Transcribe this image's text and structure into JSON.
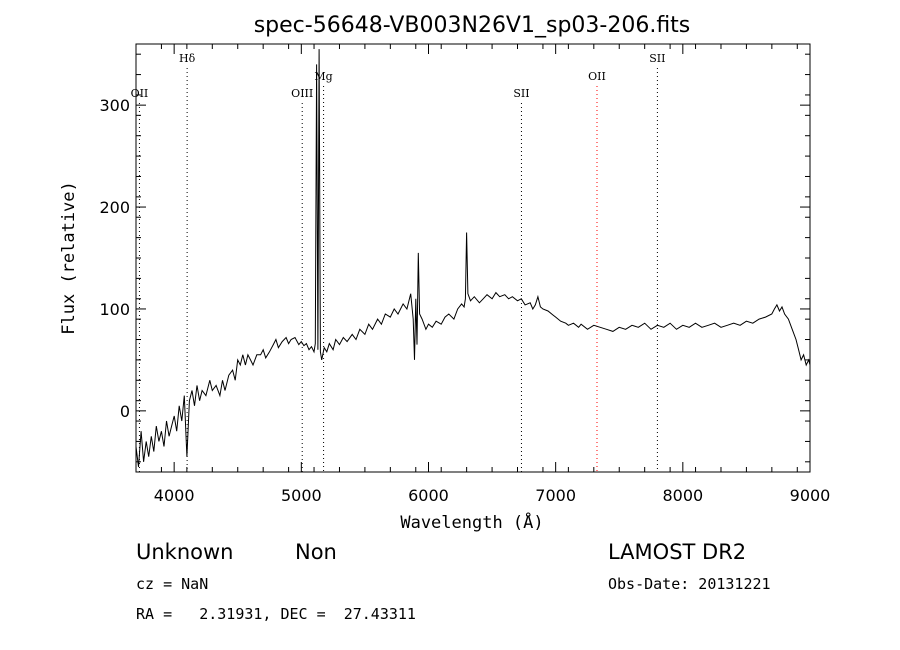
{
  "chart_data": {
    "type": "line",
    "title": "spec-56648-VB003N26V1_sp03-206.fits",
    "xlabel": "Wavelength (Å)",
    "ylabel": "Flux (relative)",
    "xlim": [
      3700,
      9000
    ],
    "ylim": [
      -60,
      360
    ],
    "x_ticks": [
      4000,
      5000,
      6000,
      7000,
      8000,
      9000
    ],
    "y_ticks": [
      0,
      100,
      200,
      300
    ],
    "grid": false,
    "line_color": "#000000",
    "series": [
      {
        "points": [
          [
            3700,
            -35
          ],
          [
            3720,
            -55
          ],
          [
            3740,
            -20
          ],
          [
            3760,
            -50
          ],
          [
            3780,
            -30
          ],
          [
            3800,
            -45
          ],
          [
            3820,
            -25
          ],
          [
            3840,
            -40
          ],
          [
            3860,
            -15
          ],
          [
            3880,
            -30
          ],
          [
            3900,
            -20
          ],
          [
            3920,
            -35
          ],
          [
            3940,
            -10
          ],
          [
            3960,
            -25
          ],
          [
            3980,
            -15
          ],
          [
            4000,
            -5
          ],
          [
            4020,
            -20
          ],
          [
            4040,
            5
          ],
          [
            4060,
            -10
          ],
          [
            4080,
            15
          ],
          [
            4100,
            -45
          ],
          [
            4120,
            10
          ],
          [
            4140,
            20
          ],
          [
            4160,
            5
          ],
          [
            4180,
            25
          ],
          [
            4200,
            10
          ],
          [
            4220,
            20
          ],
          [
            4250,
            15
          ],
          [
            4280,
            30
          ],
          [
            4300,
            20
          ],
          [
            4330,
            25
          ],
          [
            4360,
            15
          ],
          [
            4380,
            30
          ],
          [
            4400,
            20
          ],
          [
            4430,
            35
          ],
          [
            4460,
            40
          ],
          [
            4480,
            30
          ],
          [
            4500,
            50
          ],
          [
            4520,
            45
          ],
          [
            4540,
            55
          ],
          [
            4560,
            45
          ],
          [
            4580,
            55
          ],
          [
            4600,
            50
          ],
          [
            4620,
            45
          ],
          [
            4650,
            55
          ],
          [
            4680,
            55
          ],
          [
            4700,
            60
          ],
          [
            4720,
            52
          ],
          [
            4750,
            58
          ],
          [
            4780,
            65
          ],
          [
            4800,
            70
          ],
          [
            4820,
            62
          ],
          [
            4850,
            68
          ],
          [
            4880,
            72
          ],
          [
            4900,
            66
          ],
          [
            4920,
            70
          ],
          [
            4950,
            72
          ],
          [
            4980,
            65
          ],
          [
            5000,
            68
          ],
          [
            5020,
            64
          ],
          [
            5040,
            66
          ],
          [
            5060,
            60
          ],
          [
            5080,
            63
          ],
          [
            5100,
            58
          ],
          [
            5110,
            66
          ],
          [
            5120,
            340
          ],
          [
            5130,
            60
          ],
          [
            5140,
            355
          ],
          [
            5150,
            58
          ],
          [
            5160,
            50
          ],
          [
            5180,
            62
          ],
          [
            5200,
            58
          ],
          [
            5220,
            66
          ],
          [
            5250,
            60
          ],
          [
            5270,
            70
          ],
          [
            5300,
            65
          ],
          [
            5330,
            72
          ],
          [
            5360,
            68
          ],
          [
            5400,
            75
          ],
          [
            5430,
            70
          ],
          [
            5460,
            80
          ],
          [
            5500,
            75
          ],
          [
            5530,
            85
          ],
          [
            5560,
            80
          ],
          [
            5600,
            90
          ],
          [
            5630,
            85
          ],
          [
            5660,
            95
          ],
          [
            5700,
            92
          ],
          [
            5730,
            100
          ],
          [
            5760,
            95
          ],
          [
            5800,
            105
          ],
          [
            5830,
            100
          ],
          [
            5860,
            115
          ],
          [
            5880,
            90
          ],
          [
            5890,
            50
          ],
          [
            5900,
            110
          ],
          [
            5910,
            65
          ],
          [
            5920,
            155
          ],
          [
            5930,
            95
          ],
          [
            5950,
            90
          ],
          [
            5980,
            80
          ],
          [
            6000,
            85
          ],
          [
            6030,
            82
          ],
          [
            6060,
            88
          ],
          [
            6100,
            85
          ],
          [
            6130,
            92
          ],
          [
            6160,
            95
          ],
          [
            6200,
            90
          ],
          [
            6230,
            100
          ],
          [
            6260,
            105
          ],
          [
            6280,
            102
          ],
          [
            6290,
            110
          ],
          [
            6300,
            175
          ],
          [
            6310,
            115
          ],
          [
            6330,
            108
          ],
          [
            6360,
            112
          ],
          [
            6400,
            106
          ],
          [
            6430,
            110
          ],
          [
            6460,
            114
          ],
          [
            6500,
            110
          ],
          [
            6530,
            116
          ],
          [
            6560,
            112
          ],
          [
            6600,
            114
          ],
          [
            6630,
            110
          ],
          [
            6660,
            112
          ],
          [
            6700,
            108
          ],
          [
            6730,
            110
          ],
          [
            6760,
            104
          ],
          [
            6800,
            106
          ],
          [
            6820,
            100
          ],
          [
            6840,
            104
          ],
          [
            6860,
            112
          ],
          [
            6880,
            102
          ],
          [
            6900,
            100
          ],
          [
            6940,
            98
          ],
          [
            6980,
            94
          ],
          [
            7000,
            92
          ],
          [
            7040,
            88
          ],
          [
            7080,
            86
          ],
          [
            7100,
            84
          ],
          [
            7140,
            86
          ],
          [
            7180,
            82
          ],
          [
            7200,
            85
          ],
          [
            7250,
            80
          ],
          [
            7300,
            84
          ],
          [
            7350,
            82
          ],
          [
            7400,
            80
          ],
          [
            7450,
            78
          ],
          [
            7500,
            82
          ],
          [
            7550,
            80
          ],
          [
            7600,
            84
          ],
          [
            7650,
            82
          ],
          [
            7700,
            86
          ],
          [
            7750,
            80
          ],
          [
            7800,
            84
          ],
          [
            7850,
            82
          ],
          [
            7900,
            86
          ],
          [
            7950,
            80
          ],
          [
            8000,
            84
          ],
          [
            8050,
            82
          ],
          [
            8100,
            86
          ],
          [
            8150,
            82
          ],
          [
            8200,
            84
          ],
          [
            8250,
            86
          ],
          [
            8300,
            82
          ],
          [
            8350,
            84
          ],
          [
            8400,
            86
          ],
          [
            8450,
            84
          ],
          [
            8500,
            88
          ],
          [
            8550,
            86
          ],
          [
            8600,
            90
          ],
          [
            8650,
            92
          ],
          [
            8700,
            95
          ],
          [
            8720,
            100
          ],
          [
            8740,
            104
          ],
          [
            8760,
            98
          ],
          [
            8780,
            102
          ],
          [
            8800,
            95
          ],
          [
            8830,
            90
          ],
          [
            8860,
            80
          ],
          [
            8890,
            70
          ],
          [
            8910,
            60
          ],
          [
            8930,
            50
          ],
          [
            8950,
            55
          ],
          [
            8970,
            45
          ],
          [
            8990,
            50
          ],
          [
            9000,
            45
          ]
        ]
      }
    ],
    "annotations": [
      {
        "label": "OII",
        "x": 3727,
        "color": "#000000",
        "row": "low"
      },
      {
        "label": "Hδ",
        "x": 4102,
        "color": "#000000",
        "row": "high"
      },
      {
        "label": "OIII",
        "x": 5007,
        "color": "#000000",
        "row": "low"
      },
      {
        "label": "Mg",
        "x": 5175,
        "color": "#000000",
        "row": "mid"
      },
      {
        "label": "SII",
        "x": 6731,
        "color": "#000000",
        "row": "low"
      },
      {
        "label": "OII",
        "x": 7325,
        "color": "#ff0000",
        "row": "mid"
      },
      {
        "label": "SII",
        "x": 7800,
        "color": "#000000",
        "row": "high"
      }
    ]
  },
  "info": {
    "class_label": "Unknown",
    "subclass_label": "Non",
    "survey": "LAMOST DR2",
    "redshift": "cz = NaN",
    "obs_date": "Obs-Date: 20131221",
    "coords": "RA =   2.31931, DEC =  27.43311"
  }
}
